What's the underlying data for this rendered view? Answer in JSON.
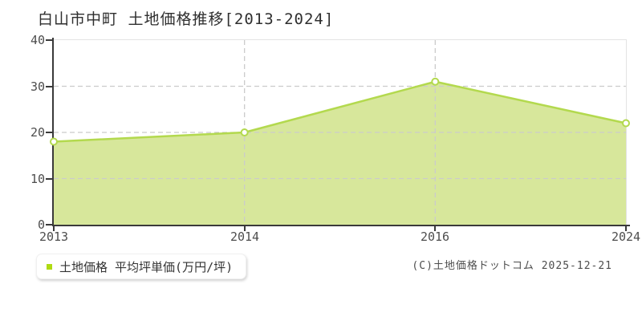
{
  "title": "白山市中町 土地価格推移[2013-2024]",
  "legend": {
    "label": "土地価格 平均坪単価(万円/坪)",
    "marker_color": "#afdb12"
  },
  "copyright": "(C)土地価格ドットコム 2025-12-21",
  "colors": {
    "line": "#b3d94e",
    "fill": "#d7e79b",
    "marker_fill": "#ffffff",
    "grid": "#cbcbcb",
    "axis": "#3a3a3a",
    "frame": "#e3e3e3",
    "tick_text": "#4d4d4d"
  },
  "chart_data": {
    "type": "area",
    "title": "白山市中町 土地価格推移[2013-2024]",
    "categories": [
      "2013",
      "2014",
      "2016",
      "2024"
    ],
    "series": [
      {
        "name": "土地価格 平均坪単価(万円/坪)",
        "values": [
          18,
          20,
          31,
          22
        ]
      }
    ],
    "xlabel": "",
    "ylabel": "平均坪単価(万円/坪)",
    "ylim": [
      0,
      40
    ],
    "y_ticks": [
      0,
      10,
      20,
      30,
      40
    ],
    "grid": true,
    "vertical_grid_categories": [
      "2014",
      "2016"
    ],
    "legend_position": "bottom-left",
    "marker": "open-circle"
  }
}
